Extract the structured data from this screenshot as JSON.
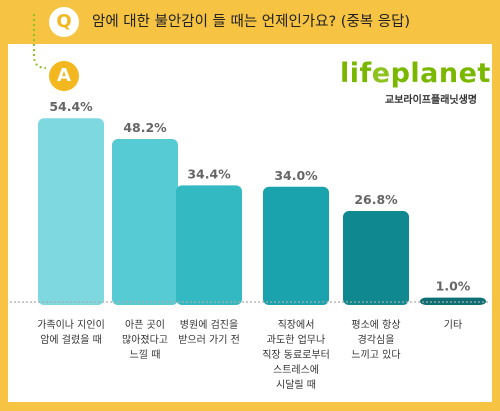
{
  "header": {
    "q_badge": "Q",
    "question": "암에 대한 불안감이 들 때는 언제인가요? (중복 응답)"
  },
  "answer_badge": "A",
  "logo": {
    "wordmark_start": "lif",
    "wordmark_e": "e",
    "wordmark_end": "planet",
    "subtitle": "교보라이프플래닛생명"
  },
  "colors": {
    "background": "#f6c342",
    "panel": "#ffffff",
    "accent_dots": "#8dc21f",
    "value_label": "#666666"
  },
  "chart_data": {
    "type": "bar",
    "categories": [
      "가족이나 지인이\n암에 걸렸을 때",
      "아픈 곳이\n많아졌다고\n느낄 때",
      "병원에 검진을\n받으러 가기 전",
      "직장에서\n과도한 업무나\n직장 동료로부터\n스트레스에\n시달릴 때",
      "평소에 항상\n경각심을\n느끼고 있다",
      "기타"
    ],
    "values": [
      54.4,
      48.2,
      34.4,
      34.0,
      26.8,
      1.0
    ],
    "value_labels": [
      "54.4%",
      "48.2%",
      "34.4%",
      "34.0%",
      "26.8%",
      "1.0%"
    ],
    "bar_colors": [
      "#7dd8df",
      "#56cbd4",
      "#33b9c2",
      "#1aa3ad",
      "#10888f",
      "#0d6f74"
    ],
    "ylim": [
      0,
      60
    ],
    "grid": false
  }
}
